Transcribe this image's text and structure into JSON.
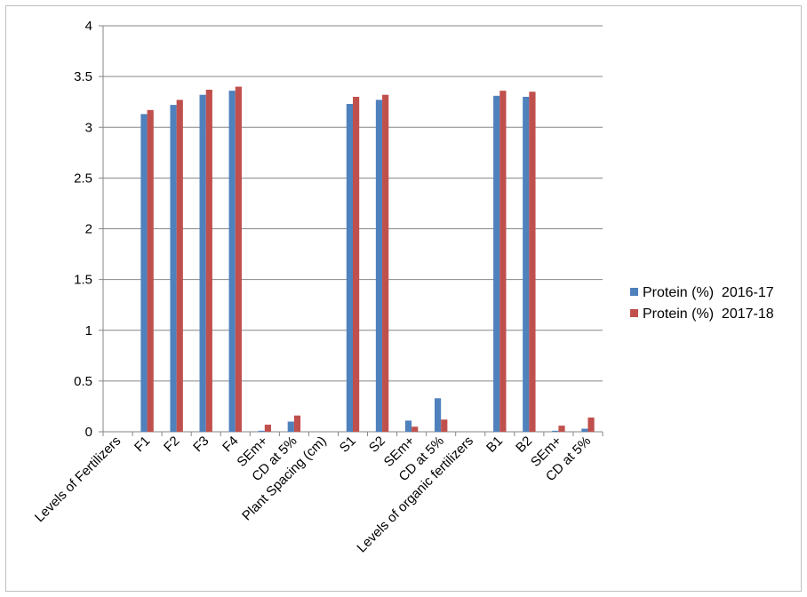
{
  "chart_data": {
    "type": "bar",
    "title": "",
    "xlabel": "",
    "ylabel": "",
    "ylim": [
      0,
      4
    ],
    "yticks": [
      "0",
      "0.5",
      "1",
      "1.5",
      "2",
      "2.5",
      "3",
      "3.5",
      "4"
    ],
    "grid": true,
    "legend_position": "right",
    "categories": [
      "Levels of Fertilizers",
      "F1",
      "F2",
      "F3",
      "F4",
      "SEm+",
      "CD at 5%",
      "Plant Spacing (cm)",
      "S1",
      "S2",
      "SEm+",
      "CD at 5%",
      "Levels of organic fertilizers",
      "B1",
      "B2",
      "SEm+",
      "CD at 5%"
    ],
    "series": [
      {
        "name": "Protein (%)  2016-17",
        "color": "#4f81bd",
        "values": [
          null,
          3.13,
          3.22,
          3.32,
          3.36,
          0.01,
          0.1,
          null,
          3.23,
          3.27,
          0.11,
          0.33,
          null,
          3.31,
          3.3,
          0.01,
          0.03
        ]
      },
      {
        "name": "Protein (%)  2017-18",
        "color": "#c0504d",
        "values": [
          null,
          3.17,
          3.27,
          3.37,
          3.4,
          0.07,
          0.16,
          null,
          3.3,
          3.32,
          0.05,
          0.12,
          null,
          3.36,
          3.35,
          0.06,
          0.14
        ]
      }
    ]
  }
}
